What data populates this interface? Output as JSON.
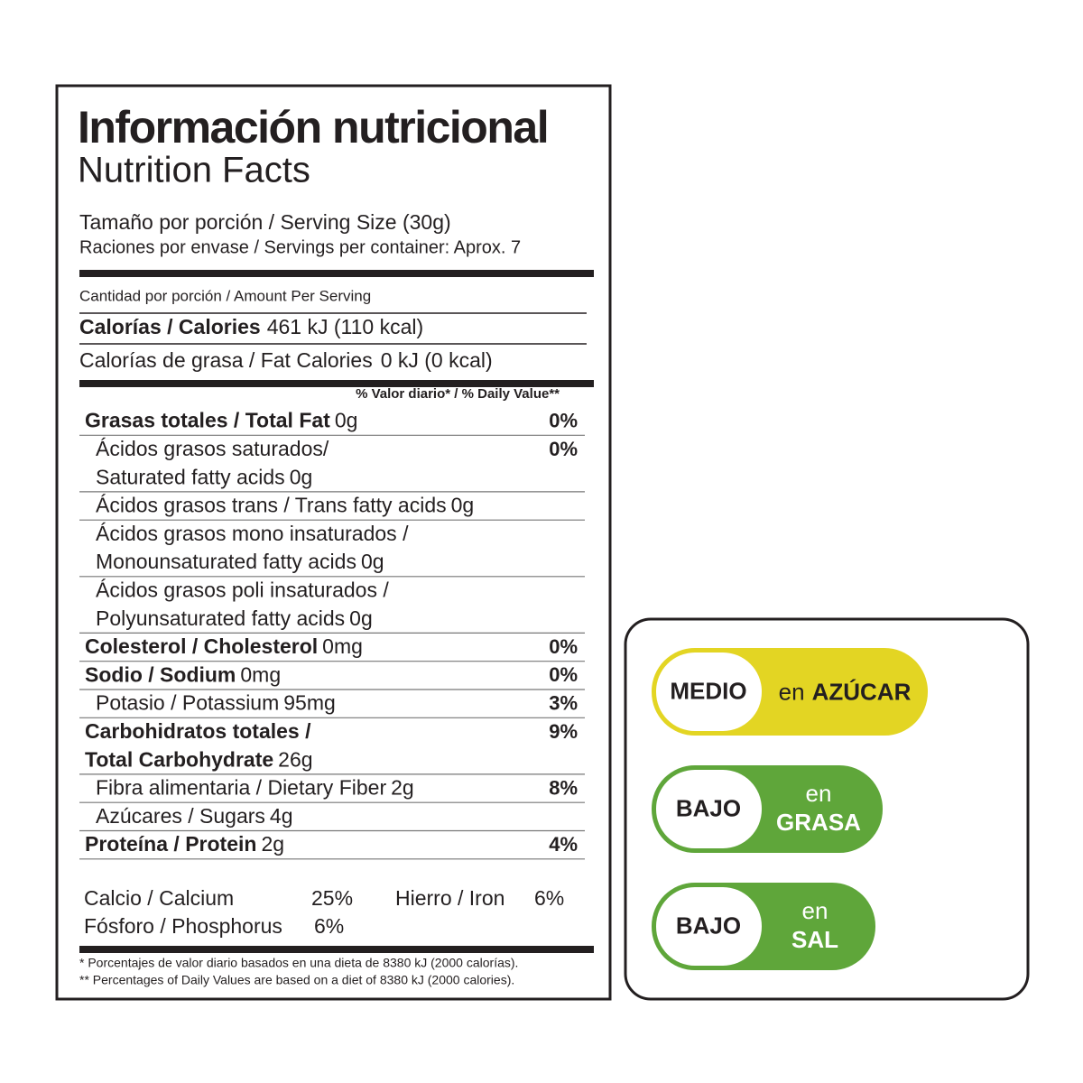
{
  "label": {
    "title": "Información nutricional",
    "subtitle": "Nutrition Facts",
    "serving_size": "Tamaño por porción / Serving Size (30g)",
    "servings": "Raciones por envase / Servings per container: Aprox. 7",
    "amount_header": "Cantidad por porción / Amount Per Serving",
    "calories": {
      "name": "Calorías / Calories",
      "amount": "461 kJ (110 kcal)"
    },
    "fat_calories": {
      "name": "Calorías de grasa / Fat Calories",
      "amount": "0 kJ (0 kcal)"
    },
    "dv_header": "% Valor diario* / % Daily Value**",
    "rows": [
      {
        "name": [
          "Grasas totales / Total Fat"
        ],
        "amount": "0g",
        "dv": "0%",
        "bold": true
      },
      {
        "name": [
          "Ácidos grasos saturados/",
          "Saturated fatty acids"
        ],
        "amount": "0g",
        "dv": "0%",
        "bold": false
      },
      {
        "name": [
          "Ácidos grasos trans / Trans fatty acids"
        ],
        "amount": "0g",
        "bold": false
      },
      {
        "name": [
          "Ácidos grasos mono insaturados /",
          "Monounsaturated fatty acids"
        ],
        "amount": "0g",
        "bold": false
      },
      {
        "name": [
          "Ácidos grasos poli insaturados /",
          "Polyunsaturated fatty acids"
        ],
        "amount": "0g",
        "bold": false
      },
      {
        "name": [
          "Colesterol / Cholesterol"
        ],
        "amount": "0mg",
        "dv": "0%",
        "bold": true
      },
      {
        "name": [
          "Sodio / Sodium"
        ],
        "amount": "0mg",
        "dv": "0%",
        "bold": true
      },
      {
        "name": [
          "Potasio / Potassium"
        ],
        "amount": "95mg",
        "dv": "3%",
        "bold": false
      },
      {
        "name": [
          "Carbohidratos totales /",
          "Total Carbohydrate"
        ],
        "amount": "26g",
        "dv": "9%",
        "bold": true
      },
      {
        "name": [
          "Fibra alimentaria / Dietary Fiber"
        ],
        "amount": "2g",
        "dv": "8%",
        "bold": false
      },
      {
        "name": [
          "Azúcares / Sugars"
        ],
        "amount": "4g",
        "bold": false
      },
      {
        "name": [
          "Proteína / Protein"
        ],
        "amount": "2g",
        "dv": "4%",
        "bold": true
      }
    ],
    "minerals": [
      {
        "name": "Calcio / Calcium",
        "dv": "25%"
      },
      {
        "name": "Hierro / Iron",
        "dv": "6%"
      },
      {
        "name": "Fósforo / Phosphorus",
        "dv": "6%"
      }
    ],
    "footnotes": [
      "* Porcentajes de valor diario basados en una dieta de 8380 kJ (2000 calorías).",
      "** Percentages of Daily Values are based on a diet of 8380 kJ (2000 calories)."
    ]
  },
  "badges": [
    {
      "level": "MEDIO",
      "prefix": "en",
      "nutrient": "AZÚCAR",
      "color": "#e3d523"
    },
    {
      "level": "BAJO",
      "prefix": "en",
      "nutrient": "GRASA",
      "color": "#5fa63a"
    },
    {
      "level": "BAJO",
      "prefix": "en",
      "nutrient": "SAL",
      "color": "#5fa63a"
    }
  ]
}
